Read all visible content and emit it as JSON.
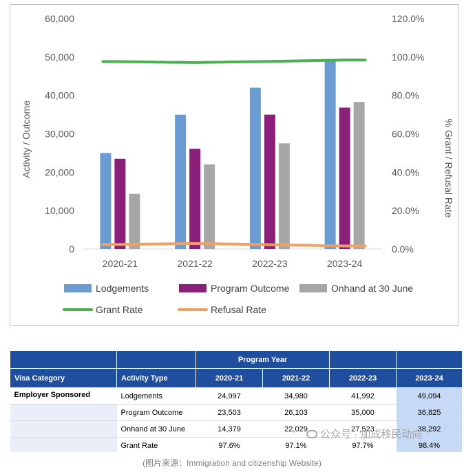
{
  "chart_data": {
    "type": "bar",
    "categories": [
      "2020-21",
      "2021-22",
      "2022-23",
      "2023-24"
    ],
    "series": [
      {
        "name": "Lodgements",
        "kind": "bar",
        "axis": "left",
        "color": "#6a9bd3",
        "values": [
          24997,
          34980,
          41992,
          49094
        ]
      },
      {
        "name": "Program Outcome",
        "kind": "bar",
        "axis": "left",
        "color": "#8b1f7a",
        "values": [
          23503,
          26103,
          35000,
          36825
        ]
      },
      {
        "name": "Onhand at 30 June",
        "kind": "bar",
        "axis": "left",
        "color": "#a6a6a6",
        "values": [
          14379,
          22029,
          27523,
          38292
        ]
      },
      {
        "name": "Grant Rate",
        "kind": "line",
        "axis": "right",
        "color": "#4caf50",
        "values": [
          97.6,
          97.1,
          97.7,
          98.4
        ]
      },
      {
        "name": "Refusal Rate",
        "kind": "line",
        "axis": "right",
        "color": "#f0a060",
        "values": [
          2.4,
          2.9,
          2.3,
          1.6
        ]
      }
    ],
    "ylabel": "Activity / Outcome",
    "y2label": "% Grant / Refusal Rate",
    "ylim": [
      0,
      60000
    ],
    "y2lim": [
      0,
      120
    ],
    "yticks": [
      "0",
      "10,000",
      "20,000",
      "30,000",
      "40,000",
      "50,000",
      "60,000"
    ],
    "y2ticks": [
      "0.0%",
      "20.0%",
      "40.0%",
      "60.0%",
      "80.0%",
      "100.0%",
      "120.0%"
    ],
    "grid": false,
    "legend": "bottom"
  },
  "table": {
    "program_year_label": "Program Year",
    "headers": [
      "Visa Category",
      "Activity Type",
      "2020-21",
      "2021-22",
      "2022-23",
      "2023-24"
    ],
    "category": "Employer Sponsored",
    "rows": [
      {
        "activity": "Lodgements",
        "values": [
          "24,997",
          "34,980",
          "41,992",
          "49,094"
        ]
      },
      {
        "activity": "Program Outcome",
        "values": [
          "23,503",
          "26,103",
          "35,000",
          "36,825"
        ]
      },
      {
        "activity": "Onhand at 30 June",
        "values": [
          "14,379",
          "22,029",
          "27,523",
          "38,292"
        ]
      },
      {
        "activity": "Grant Rate",
        "values": [
          "97.6%",
          "97.1%",
          "97.7%",
          "98.4%"
        ]
      }
    ]
  },
  "caption": "(图片来源：Immigration and citizenship Website)",
  "watermark": "公众号 · 加成移民动向",
  "colors": {
    "header_bg": "#1f4e9e",
    "highlight": "#c6d9f5"
  }
}
